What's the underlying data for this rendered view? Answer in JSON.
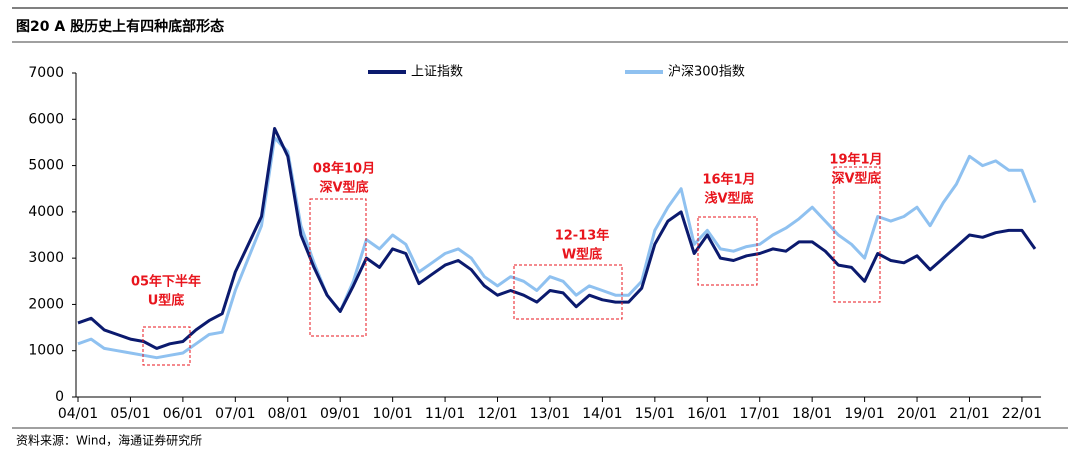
{
  "chart_data": {
    "type": "line",
    "title": "图20 A 股历史上有四种底部形态",
    "source": "资料来源：Wind，海通证券研究所",
    "categories": [
      "04/01",
      null,
      null,
      null,
      "05/01",
      null,
      null,
      null,
      "06/01",
      null,
      null,
      null,
      "07/01",
      null,
      null,
      null,
      "08/01",
      null,
      null,
      null,
      "09/01",
      null,
      null,
      null,
      "10/01",
      null,
      null,
      null,
      "11/01",
      null,
      null,
      null,
      "12/01",
      null,
      null,
      null,
      "13/01",
      null,
      null,
      null,
      "14/01",
      null,
      null,
      null,
      "15/01",
      null,
      null,
      null,
      "16/01",
      null,
      null,
      null,
      "17/01",
      null,
      null,
      null,
      "18/01",
      null,
      null,
      null,
      "19/01",
      null,
      null,
      null,
      "20/01",
      null,
      null,
      null,
      "21/01",
      null,
      null,
      null,
      "22/01",
      null
    ],
    "series": [
      {
        "name": "上证指数",
        "color": "#0b1a6e",
        "values": [
          1600,
          1700,
          1450,
          1350,
          1250,
          1200,
          1050,
          1150,
          1200,
          1450,
          1650,
          1800,
          2700,
          3300,
          3900,
          5800,
          5200,
          3500,
          2800,
          2200,
          1850,
          2400,
          3000,
          2800,
          3200,
          3100,
          2450,
          2650,
          2850,
          2950,
          2750,
          2400,
          2200,
          2300,
          2200,
          2050,
          2300,
          2250,
          1950,
          2200,
          2100,
          2050,
          2050,
          2350,
          3300,
          3800,
          4000,
          3100,
          3500,
          3000,
          2950,
          3050,
          3100,
          3200,
          3150,
          3350,
          3350,
          3150,
          2850,
          2800,
          2500,
          3100,
          2950,
          2900,
          3050,
          2750,
          3000,
          3250,
          3500,
          3450,
          3550,
          3600,
          3600,
          3200
        ]
      },
      {
        "name": "沪深300指数",
        "color": "#8fc1f0",
        "values": [
          1150,
          1250,
          1050,
          1000,
          950,
          900,
          850,
          900,
          950,
          1150,
          1350,
          1400,
          2300,
          3000,
          3700,
          5600,
          5300,
          3700,
          2900,
          2200,
          1850,
          2500,
          3400,
          3200,
          3500,
          3300,
          2700,
          2900,
          3100,
          3200,
          3000,
          2600,
          2400,
          2600,
          2500,
          2300,
          2600,
          2500,
          2200,
          2400,
          2300,
          2200,
          2200,
          2500,
          3600,
          4100,
          4500,
          3300,
          3600,
          3200,
          3150,
          3250,
          3300,
          3500,
          3650,
          3850,
          4100,
          3800,
          3500,
          3300,
          3000,
          3900,
          3800,
          3900,
          4100,
          3700,
          4200,
          4600,
          5200,
          5000,
          5100,
          4900,
          4900,
          4200
        ]
      }
    ],
    "ylim": [
      0,
      7000
    ],
    "yticks": [
      0,
      1000,
      2000,
      3000,
      4000,
      5000,
      6000,
      7000
    ],
    "annotations": [
      [
        "05年下半年",
        "U型底"
      ],
      [
        "08年10月",
        "深V型底"
      ],
      [
        "12-13年",
        "W型底"
      ],
      [
        "16年1月",
        "浅V型底"
      ],
      [
        "19年1月",
        "深V型底"
      ]
    ]
  }
}
